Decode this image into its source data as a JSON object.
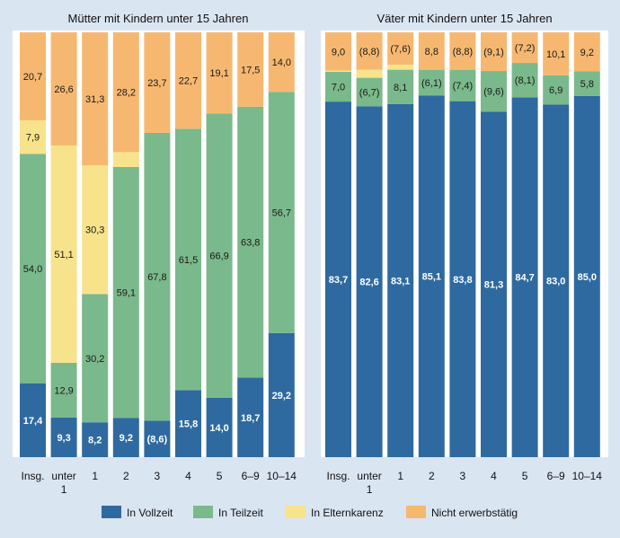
{
  "legend": [
    {
      "key": "vollzeit",
      "label": "In Vollzeit",
      "color": "#2e6aa0"
    },
    {
      "key": "teilzeit",
      "label": "In Teilzeit",
      "color": "#7ab98b"
    },
    {
      "key": "elternkarenz",
      "label": "In Elternkarenz",
      "color": "#f7e38b"
    },
    {
      "key": "nicht",
      "label": "Nicht erwerbstätig",
      "color": "#f6b870"
    }
  ],
  "chart_data": [
    {
      "type": "bar",
      "stacked": true,
      "unit": "percent",
      "ylim": [
        0,
        100
      ],
      "title": "Mütter mit Kindern unter 15 Jahren",
      "categories": [
        "Insg.",
        "unter 1",
        "1",
        "2",
        "3",
        "4",
        "5",
        "6–9",
        "10–14"
      ],
      "series": [
        {
          "name": "In Vollzeit",
          "values": [
            17.4,
            9.3,
            8.2,
            9.2,
            8.6,
            15.8,
            14.0,
            18.7,
            29.2
          ],
          "labels": [
            "17,4",
            "9,3",
            "8,2",
            "9,2",
            "(8,6)",
            "15,8",
            "14,0",
            "18,7",
            "29,2"
          ]
        },
        {
          "name": "In Teilzeit",
          "values": [
            54.0,
            12.9,
            30.2,
            59.1,
            67.8,
            61.5,
            66.9,
            63.8,
            56.7
          ],
          "labels": [
            "54,0",
            "12,9",
            "30,2",
            "59,1",
            "67,8",
            "61,5",
            "66,9",
            "63,8",
            "56,7"
          ]
        },
        {
          "name": "In Elternkarenz",
          "values": [
            7.9,
            51.1,
            30.3,
            3.5,
            0,
            0,
            0,
            0,
            0
          ],
          "labels": [
            "7,9",
            "51,1",
            "30,3",
            "",
            "",
            "",
            "",
            "",
            ""
          ]
        },
        {
          "name": "Nicht erwerbstätig",
          "values": [
            20.7,
            26.6,
            31.3,
            28.2,
            23.7,
            22.7,
            19.1,
            17.5,
            14.0
          ],
          "labels": [
            "20,7",
            "26,6",
            "31,3",
            "28,2",
            "23,7",
            "22,7",
            "19,1",
            "17,5",
            "14,0"
          ]
        }
      ]
    },
    {
      "type": "bar",
      "stacked": true,
      "unit": "percent",
      "ylim": [
        0,
        100
      ],
      "title": "Väter mit Kindern unter 15 Jahren",
      "categories": [
        "Insg.",
        "unter 1",
        "1",
        "2",
        "3",
        "4",
        "5",
        "6–9",
        "10–14"
      ],
      "series": [
        {
          "name": "In Vollzeit",
          "values": [
            83.7,
            82.6,
            83.1,
            85.1,
            83.8,
            81.3,
            84.7,
            83.0,
            85.0
          ],
          "labels": [
            "83,7",
            "82,6",
            "83,1",
            "85,1",
            "83,8",
            "81,3",
            "84,7",
            "83,0",
            "85,0"
          ]
        },
        {
          "name": "In Teilzeit",
          "values": [
            7.0,
            6.7,
            8.1,
            6.1,
            7.4,
            9.6,
            8.1,
            6.9,
            5.8
          ],
          "labels": [
            "7,0",
            "(6,7)",
            "8,1",
            "(6,1)",
            "(7,4)",
            "(9,6)",
            "(8,1)",
            "6,9",
            "5,8"
          ]
        },
        {
          "name": "In Elternkarenz",
          "values": [
            0.3,
            1.9,
            1.2,
            0,
            0,
            0,
            0,
            0,
            0
          ],
          "labels": [
            "",
            "",
            "",
            "",
            "",
            "",
            "",
            "",
            ""
          ]
        },
        {
          "name": "Nicht erwerbstätig",
          "values": [
            9.0,
            8.8,
            7.6,
            8.8,
            8.8,
            9.1,
            7.2,
            10.1,
            9.2
          ],
          "labels": [
            "9,0",
            "(8,8)",
            "(7,6)",
            "8,8",
            "(8,8)",
            "(9,1)",
            "(7,2)",
            "10,1",
            "9,2"
          ]
        }
      ]
    }
  ]
}
